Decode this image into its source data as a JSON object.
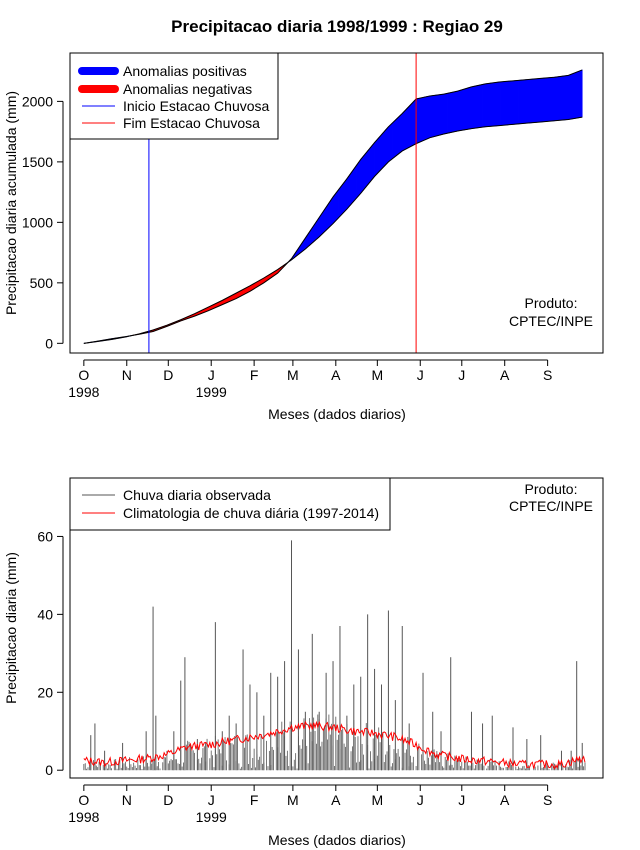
{
  "chart_data": [
    {
      "type": "area",
      "title": "Precipitacao diaria 1998/1999 : Regiao 29",
      "xlabel": "Meses (dados diarios)",
      "ylabel": "Precipitacao diaria acumulada (mm)",
      "ylim": [
        -80,
        2400
      ],
      "yticks": [
        0,
        500,
        1000,
        1500,
        2000
      ],
      "xlim_day": [
        -10,
        375
      ],
      "month_ticks": {
        "labels": [
          "O",
          "N",
          "D",
          "J",
          "F",
          "M",
          "A",
          "M",
          "J",
          "J",
          "A",
          "S"
        ],
        "days": [
          0,
          31,
          61,
          92,
          123,
          151,
          182,
          212,
          243,
          273,
          304,
          335
        ]
      },
      "year_labels": [
        {
          "day": 0,
          "label": "1998"
        },
        {
          "day": 92,
          "label": "1999"
        }
      ],
      "legend": {
        "placement": "top-left",
        "entries": [
          {
            "label": "Anomalias positivas",
            "color": "#0000ff",
            "kind": "thick"
          },
          {
            "label": "Anomalias negativas",
            "color": "#ff0000",
            "kind": "thick"
          },
          {
            "label": "Inicio Estacao Chuvosa",
            "color": "#0000ff",
            "kind": "line"
          },
          {
            "label": "Fim Estacao Chuvosa",
            "color": "#ff0000",
            "kind": "line"
          }
        ]
      },
      "credit": [
        "Produto:",
        "CPTEC/INPE"
      ],
      "rainy_season_start_day": 47,
      "rainy_season_end_day": 240,
      "observed_cumulative": {
        "days": [
          0,
          10,
          20,
          30,
          40,
          50,
          60,
          70,
          80,
          90,
          100,
          110,
          120,
          130,
          140,
          150,
          160,
          170,
          180,
          190,
          200,
          210,
          220,
          230,
          240,
          250,
          260,
          270,
          280,
          290,
          300,
          310,
          320,
          330,
          340,
          350,
          360
        ],
        "values": [
          0,
          18,
          38,
          55,
          75,
          98,
          140,
          185,
          225,
          270,
          320,
          370,
          430,
          500,
          580,
          700,
          870,
          1040,
          1210,
          1360,
          1520,
          1660,
          1790,
          1900,
          2020,
          2045,
          2060,
          2085,
          2120,
          2145,
          2160,
          2170,
          2180,
          2190,
          2200,
          2215,
          2260
        ]
      },
      "climatology_cumulative": {
        "days": [
          0,
          10,
          20,
          30,
          40,
          50,
          60,
          70,
          80,
          90,
          100,
          110,
          120,
          130,
          140,
          150,
          160,
          170,
          180,
          190,
          200,
          210,
          220,
          230,
          240,
          250,
          260,
          270,
          280,
          290,
          300,
          310,
          320,
          330,
          340,
          350,
          360
        ],
        "values": [
          0,
          15,
          32,
          52,
          78,
          110,
          150,
          195,
          245,
          300,
          355,
          415,
          475,
          540,
          610,
          690,
          780,
          880,
          990,
          1110,
          1240,
          1380,
          1500,
          1590,
          1650,
          1700,
          1730,
          1755,
          1775,
          1790,
          1800,
          1810,
          1820,
          1830,
          1840,
          1850,
          1870
        ]
      }
    },
    {
      "type": "bar",
      "xlabel": "Meses (dados diarios)",
      "ylabel": "Precipitacao diaria (mm)",
      "ylim": [
        -2,
        75
      ],
      "yticks": [
        0,
        20,
        40,
        60
      ],
      "xlim_day": [
        -10,
        375
      ],
      "month_ticks": {
        "labels": [
          "O",
          "N",
          "D",
          "J",
          "F",
          "M",
          "A",
          "M",
          "J",
          "J",
          "A",
          "S"
        ],
        "days": [
          0,
          31,
          61,
          92,
          123,
          151,
          182,
          212,
          243,
          273,
          304,
          335
        ]
      },
      "year_labels": [
        {
          "day": 0,
          "label": "1998"
        },
        {
          "day": 92,
          "label": "1999"
        }
      ],
      "legend": {
        "placement": "top-left",
        "entries": [
          {
            "label": "Chuva diaria observada",
            "color": "#555555"
          },
          {
            "label": "Climatologia de chuva diária (1997-2014)",
            "color": "#ff0000"
          }
        ]
      },
      "credit": [
        "Produto:",
        "CPTEC/INPE"
      ],
      "observed_peaks": {
        "days": [
          5,
          8,
          15,
          28,
          45,
          50,
          52,
          65,
          70,
          73,
          82,
          88,
          95,
          100,
          105,
          110,
          115,
          120,
          125,
          130,
          135,
          140,
          145,
          150,
          155,
          160,
          165,
          170,
          175,
          180,
          185,
          190,
          195,
          200,
          205,
          210,
          215,
          220,
          225,
          230,
          235,
          245,
          252,
          258,
          265,
          280,
          288,
          295,
          310,
          320,
          330,
          345,
          352,
          356,
          358,
          360
        ],
        "values": [
          9,
          12,
          5,
          7,
          10,
          42,
          14,
          10,
          23,
          29,
          8,
          7,
          38,
          10,
          14,
          12,
          31,
          22,
          20,
          14,
          25,
          24,
          28,
          59,
          31,
          15,
          35,
          15,
          25,
          28,
          37,
          14,
          22,
          24,
          40,
          26,
          22,
          41,
          18,
          37,
          12,
          25,
          15,
          10,
          29,
          15,
          12,
          14,
          11,
          8,
          9,
          5,
          5,
          28,
          3,
          7
        ]
      },
      "climatology": {
        "days": [
          0,
          15,
          30,
          45,
          60,
          75,
          90,
          105,
          120,
          135,
          150,
          165,
          180,
          195,
          210,
          225,
          240,
          255,
          270,
          285,
          300,
          315,
          330,
          345,
          360
        ],
        "values": [
          2.5,
          2,
          2.5,
          3,
          4,
          6,
          6.5,
          7.5,
          8.5,
          9.5,
          11,
          11.5,
          11,
          10,
          9.5,
          8.5,
          6.5,
          4,
          3,
          2.5,
          2,
          1.5,
          1.5,
          1.5,
          3
        ]
      }
    }
  ]
}
